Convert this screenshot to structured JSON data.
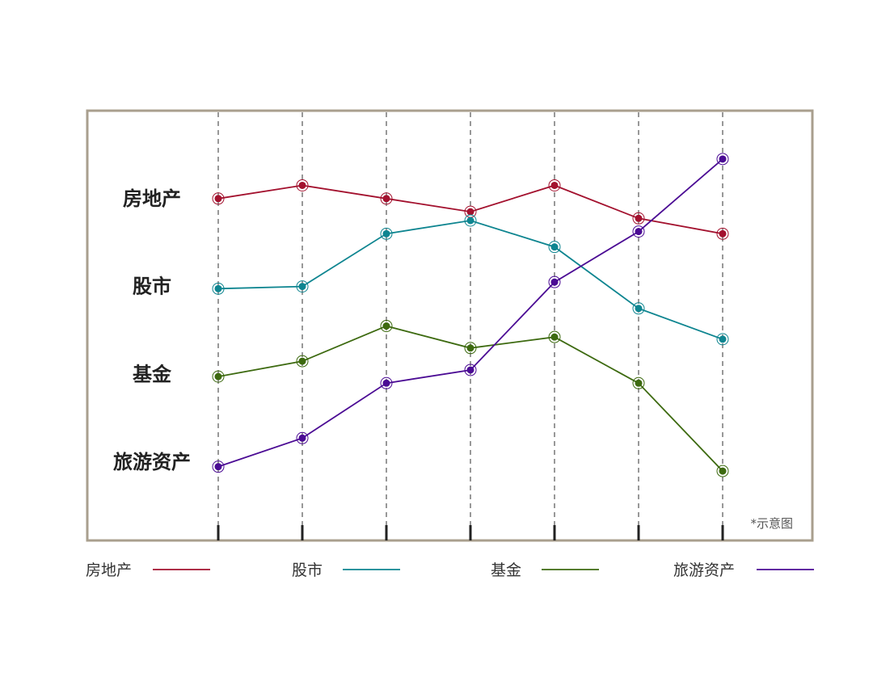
{
  "chart_data": {
    "type": "line",
    "x": [
      1,
      2,
      3,
      4,
      5,
      6,
      7
    ],
    "ylim": [
      0,
      100
    ],
    "grid": true,
    "legend_placement": "bottom",
    "note": "*示意图",
    "row_labels": [
      {
        "text": "房地产",
        "y": 80
      },
      {
        "text": "股市",
        "y": 60
      },
      {
        "text": "基金",
        "y": 40
      },
      {
        "text": "旅游资产",
        "y": 20
      }
    ],
    "series": [
      {
        "name": "房地产",
        "color": "#a3112e",
        "values": [
          80,
          83,
          80,
          77,
          83,
          75.5,
          72
        ]
      },
      {
        "name": "股市",
        "color": "#0e8590",
        "values": [
          59.5,
          60,
          72,
          75,
          69,
          55,
          48
        ]
      },
      {
        "name": "基金",
        "color": "#3d6a10",
        "values": [
          39.5,
          43,
          51,
          46,
          48.5,
          38,
          18
        ]
      },
      {
        "name": "旅游资产",
        "color": "#4b0b94",
        "values": [
          19,
          25.5,
          38,
          41,
          61,
          72.5,
          89
        ]
      }
    ]
  }
}
